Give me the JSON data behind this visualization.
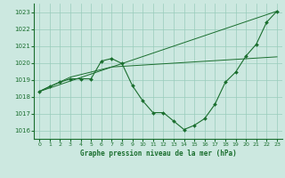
{
  "xlabel": "Graphe pression niveau de la mer (hPa)",
  "xlim": [
    -0.5,
    23.5
  ],
  "ylim": [
    1015.5,
    1023.5
  ],
  "yticks": [
    1016,
    1017,
    1018,
    1019,
    1020,
    1021,
    1022,
    1023
  ],
  "xticks": [
    0,
    1,
    2,
    3,
    4,
    5,
    6,
    7,
    8,
    9,
    10,
    11,
    12,
    13,
    14,
    15,
    16,
    17,
    18,
    19,
    20,
    21,
    22,
    23
  ],
  "bg_color": "#cce8e0",
  "grid_color": "#99ccbb",
  "line_color": "#1a6e2e",
  "main_line": [
    [
      0,
      1018.3
    ],
    [
      1,
      1018.6
    ],
    [
      2,
      1018.85
    ],
    [
      3,
      1019.05
    ],
    [
      4,
      1019.05
    ],
    [
      5,
      1019.05
    ],
    [
      6,
      1020.1
    ],
    [
      7,
      1020.25
    ],
    [
      8,
      1019.95
    ],
    [
      9,
      1018.65
    ],
    [
      10,
      1017.75
    ],
    [
      11,
      1017.05
    ],
    [
      12,
      1017.05
    ],
    [
      13,
      1016.55
    ],
    [
      14,
      1016.05
    ],
    [
      15,
      1016.3
    ],
    [
      16,
      1016.7
    ],
    [
      17,
      1017.55
    ],
    [
      18,
      1018.85
    ],
    [
      19,
      1019.45
    ],
    [
      20,
      1020.4
    ],
    [
      21,
      1021.1
    ],
    [
      22,
      1022.4
    ],
    [
      23,
      1023.05
    ]
  ],
  "ref_line1": [
    [
      0,
      1018.3
    ],
    [
      23,
      1023.05
    ]
  ],
  "ref_line2": [
    [
      0,
      1018.3
    ],
    [
      3,
      1019.15
    ],
    [
      7,
      1019.75
    ],
    [
      23,
      1020.35
    ]
  ]
}
